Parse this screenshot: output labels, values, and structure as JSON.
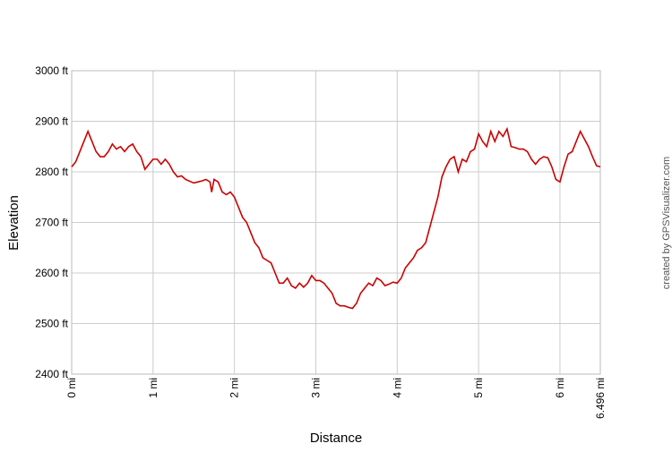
{
  "chart_data": {
    "type": "line",
    "x_label": "Distance",
    "y_label": "Elevation",
    "credit": "created by GPSVisualizer.com",
    "color": "#cc0000",
    "grid": true,
    "xlim": [
      0,
      6.496
    ],
    "ylim": [
      2400,
      3000
    ],
    "xticks": [
      {
        "value": 0,
        "label": "0 mi"
      },
      {
        "value": 1,
        "label": "1 mi"
      },
      {
        "value": 2,
        "label": "2 mi"
      },
      {
        "value": 3,
        "label": "3 mi"
      },
      {
        "value": 4,
        "label": "4 mi"
      },
      {
        "value": 5,
        "label": "5 mi"
      },
      {
        "value": 6,
        "label": "6 mi"
      },
      {
        "value": 6.496,
        "label": "6.496 mi"
      }
    ],
    "yticks": [
      {
        "value": 2400,
        "label": "2400 ft"
      },
      {
        "value": 2500,
        "label": "2500 ft"
      },
      {
        "value": 2600,
        "label": "2600 ft"
      },
      {
        "value": 2700,
        "label": "2700 ft"
      },
      {
        "value": 2800,
        "label": "2800 ft"
      },
      {
        "value": 2900,
        "label": "2900 ft"
      },
      {
        "value": 3000,
        "label": "3000 ft"
      }
    ],
    "x": [
      0,
      0.05,
      0.1,
      0.15,
      0.2,
      0.25,
      0.3,
      0.35,
      0.4,
      0.45,
      0.5,
      0.55,
      0.6,
      0.65,
      0.7,
      0.75,
      0.8,
      0.85,
      0.9,
      0.95,
      1.0,
      1.05,
      1.1,
      1.15,
      1.2,
      1.25,
      1.3,
      1.35,
      1.4,
      1.5,
      1.55,
      1.6,
      1.65,
      1.7,
      1.72,
      1.75,
      1.8,
      1.85,
      1.9,
      1.95,
      2.0,
      2.05,
      2.1,
      2.15,
      2.2,
      2.25,
      2.3,
      2.35,
      2.4,
      2.45,
      2.5,
      2.55,
      2.6,
      2.65,
      2.7,
      2.75,
      2.8,
      2.85,
      2.9,
      2.95,
      3.0,
      3.05,
      3.1,
      3.15,
      3.2,
      3.25,
      3.3,
      3.35,
      3.4,
      3.45,
      3.5,
      3.55,
      3.6,
      3.65,
      3.7,
      3.75,
      3.8,
      3.85,
      3.9,
      3.95,
      4.0,
      4.05,
      4.1,
      4.15,
      4.2,
      4.25,
      4.3,
      4.35,
      4.4,
      4.45,
      4.5,
      4.55,
      4.6,
      4.65,
      4.7,
      4.75,
      4.8,
      4.85,
      4.9,
      4.95,
      5.0,
      5.05,
      5.1,
      5.15,
      5.2,
      5.25,
      5.3,
      5.35,
      5.4,
      5.45,
      5.5,
      5.55,
      5.6,
      5.65,
      5.7,
      5.75,
      5.8,
      5.85,
      5.9,
      5.95,
      6.0,
      6.05,
      6.1,
      6.15,
      6.2,
      6.25,
      6.3,
      6.35,
      6.4,
      6.45,
      6.496
    ],
    "values": [
      2810,
      2820,
      2840,
      2860,
      2880,
      2860,
      2840,
      2830,
      2830,
      2840,
      2855,
      2845,
      2850,
      2840,
      2850,
      2855,
      2840,
      2830,
      2805,
      2815,
      2825,
      2825,
      2815,
      2825,
      2815,
      2800,
      2790,
      2792,
      2785,
      2778,
      2780,
      2782,
      2785,
      2780,
      2760,
      2785,
      2780,
      2760,
      2755,
      2760,
      2750,
      2730,
      2710,
      2700,
      2680,
      2660,
      2650,
      2630,
      2625,
      2620,
      2600,
      2580,
      2580,
      2590,
      2575,
      2570,
      2580,
      2572,
      2580,
      2595,
      2585,
      2585,
      2580,
      2570,
      2560,
      2540,
      2535,
      2535,
      2532,
      2530,
      2540,
      2560,
      2570,
      2580,
      2575,
      2590,
      2585,
      2575,
      2578,
      2582,
      2580,
      2590,
      2610,
      2620,
      2630,
      2645,
      2650,
      2660,
      2690,
      2720,
      2750,
      2790,
      2810,
      2825,
      2830,
      2800,
      2825,
      2820,
      2840,
      2845,
      2875,
      2860,
      2850,
      2880,
      2860,
      2880,
      2870,
      2885,
      2850,
      2848,
      2845,
      2845,
      2840,
      2825,
      2815,
      2825,
      2830,
      2828,
      2810,
      2785,
      2780,
      2810,
      2835,
      2840,
      2860,
      2880,
      2865,
      2850,
      2830,
      2812,
      2810
    ]
  }
}
